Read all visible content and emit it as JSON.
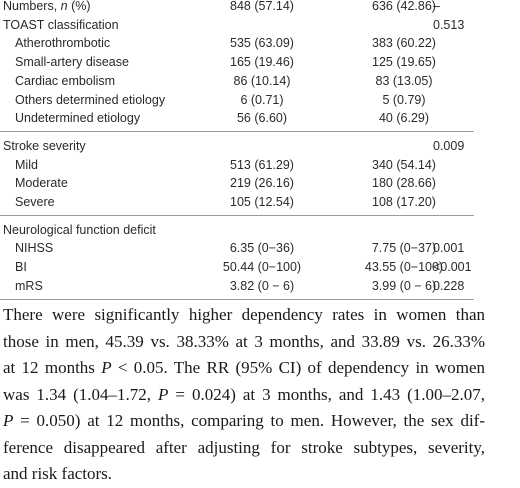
{
  "table": {
    "rows": [
      {
        "label": [
          "Numbers, ",
          "n",
          " (%)"
        ],
        "cells": [
          "848 (57.14)",
          "636 (42.86)",
          "–"
        ]
      },
      {
        "label": [
          "TOAST classification"
        ],
        "cells": [
          null,
          null,
          "0.513"
        ]
      },
      {
        "label": [
          "Atherothrombotic"
        ],
        "sub": true,
        "cells": [
          "535 (63.09)",
          "383 (60.22)",
          null
        ]
      },
      {
        "label": [
          "Small-artery disease"
        ],
        "sub": true,
        "cells": [
          "165 (19.46)",
          "125 (19.65)",
          null
        ]
      },
      {
        "label": [
          "Cardiac embolism"
        ],
        "sub": true,
        "cells": [
          "86 (10.14)",
          "83 (13.05)",
          null
        ]
      },
      {
        "label": [
          "Others determined etiology"
        ],
        "sub": true,
        "cells": [
          "6 (0.71)",
          "5 (0.79)",
          null
        ]
      },
      {
        "label": [
          "Undetermined etiology"
        ],
        "sub": true,
        "cells": [
          "56 (6.60)",
          "40 (6.29)",
          null
        ],
        "rule": true
      },
      {
        "label": [
          "Stroke severity"
        ],
        "cells": [
          null,
          null,
          "0.009"
        ]
      },
      {
        "label": [
          "Mild"
        ],
        "sub": true,
        "cells": [
          "513 (61.29)",
          "340 (54.14)",
          null
        ]
      },
      {
        "label": [
          "Moderate"
        ],
        "sub": true,
        "cells": [
          "219 (26.16)",
          "180 (28.66)",
          null
        ]
      },
      {
        "label": [
          "Severe"
        ],
        "sub": true,
        "cells": [
          "105 (12.54)",
          "108 (17.20)",
          null
        ],
        "rule": true
      },
      {
        "label": [
          "Neurological function deficit"
        ],
        "cells": [
          null,
          null,
          null
        ]
      },
      {
        "label": [
          "NIHSS"
        ],
        "sub": true,
        "cells": [
          "6.35 (0−36)",
          "7.75 (0−37)",
          "0.001"
        ]
      },
      {
        "label": [
          "BI"
        ],
        "sub": true,
        "cells": [
          "50.44 (0−100)",
          "43.55 (0−100)",
          "<0.001"
        ]
      },
      {
        "label": [
          "mRS"
        ],
        "sub": true,
        "cells": [
          "3.82 (0 − 6)",
          "3.99 (0 − 6)",
          "0.228"
        ],
        "rule": true
      }
    ]
  },
  "paragraph": {
    "lines": [
      [
        "There were significantly higher dependency rates in women than"
      ],
      [
        "those in men, 45.39 vs. 38.33% at 3 months, and 33.89 vs. 26.33%"
      ],
      [
        "at 12 months ",
        "P",
        " < 0.05. The RR (95% CI) of dependency in women"
      ],
      [
        "was 1.34 (1.04–1.72, ",
        "P",
        " = 0.024) at 3 months, and 1.43 (1.00–2.07,"
      ],
      [
        "",
        "P",
        " = 0.050) at 12 months, comparing to men. However, the sex dif-"
      ],
      [
        "ference disappeared after adjusting for stroke subtypes, severity,"
      ],
      [
        "and risk factors."
      ]
    ]
  }
}
